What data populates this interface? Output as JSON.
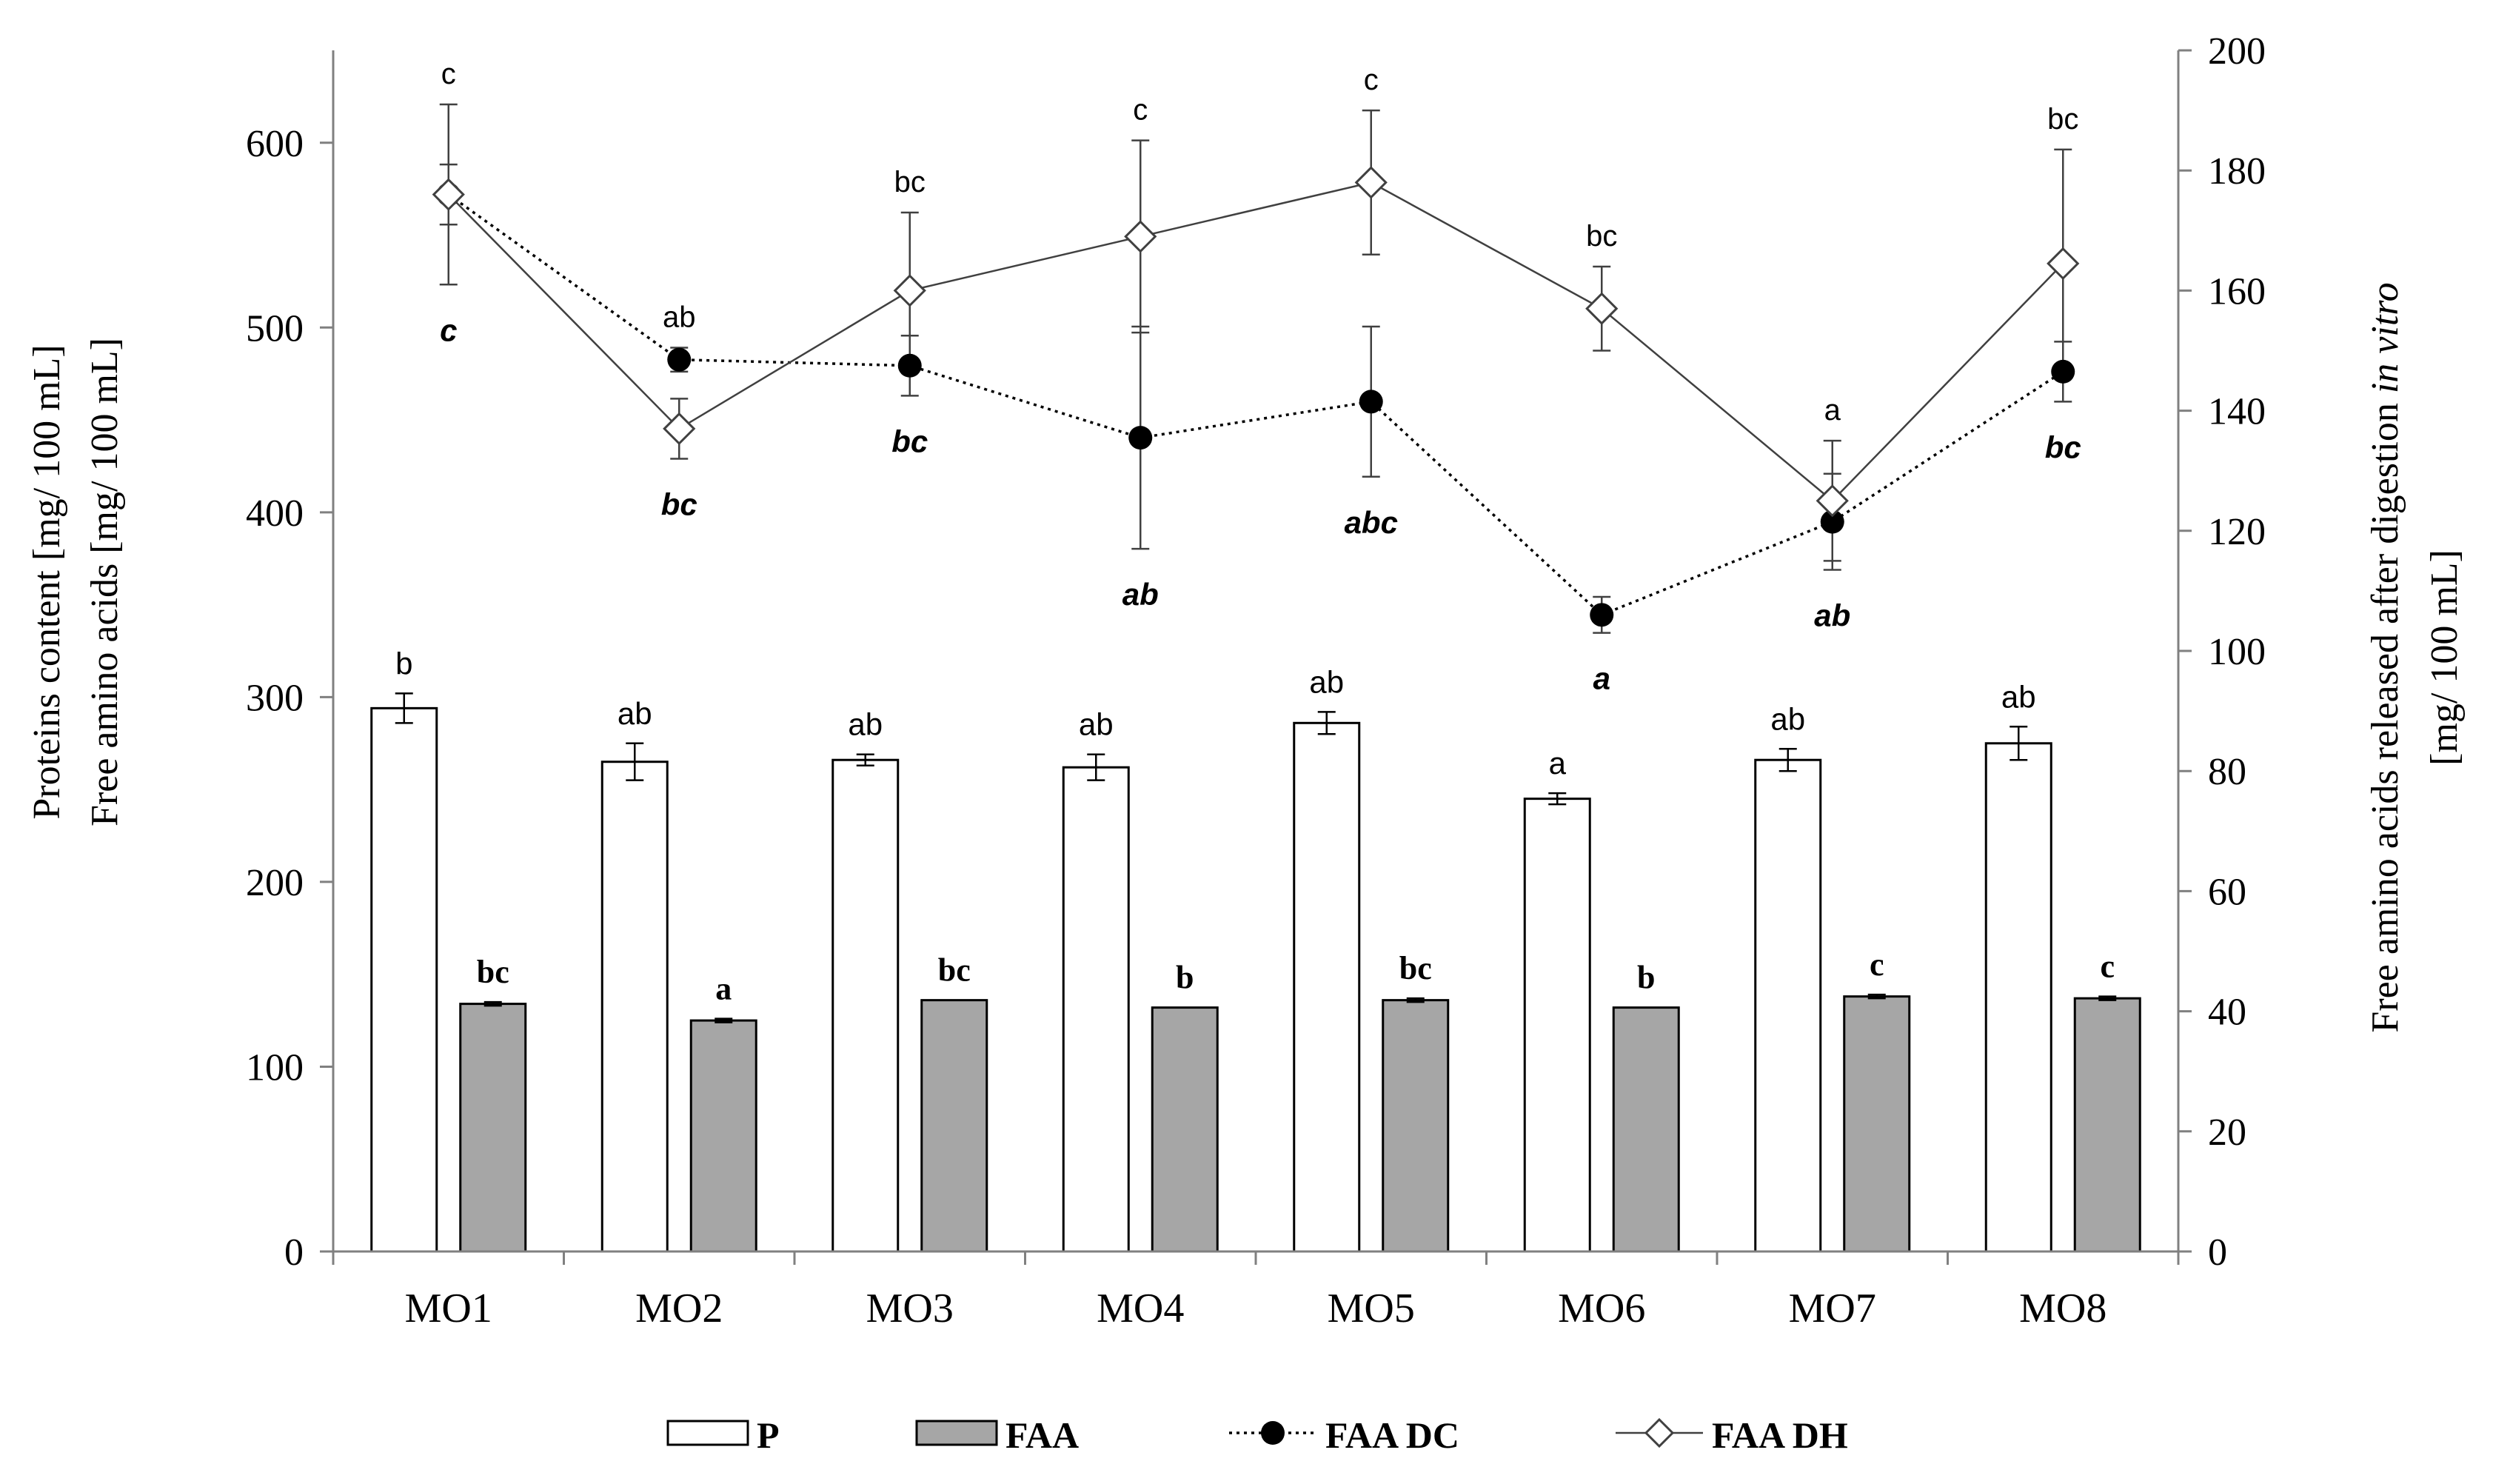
{
  "chart_data": {
    "type": "bar+line",
    "categories": [
      "MO1",
      "MO2",
      "MO3",
      "MO4",
      "MO5",
      "MO6",
      "MO7",
      "MO8"
    ],
    "left_axis": {
      "label_line1": "Proteins content [mg/ 100 mL]",
      "label_line2": "Free amino acids [mg/ 100 mL]",
      "ylim": [
        0,
        650
      ],
      "ticks": [
        "0",
        "100",
        "200",
        "300",
        "400",
        "500",
        "600"
      ]
    },
    "right_axis": {
      "label_line1_prefix": "Free amino acids released after digestion ",
      "label_line1_italic": "in vitro",
      "label_line2": "[mg/ 100 mL]",
      "ylim": [
        0,
        200
      ],
      "ticks": [
        "0",
        "20",
        "40",
        "60",
        "80",
        "100",
        "120",
        "140",
        "160",
        "180",
        "200"
      ]
    },
    "series": [
      {
        "name": "P",
        "kind": "bar",
        "axis": "left",
        "color": "#ffffff",
        "values": [
          294,
          265,
          266,
          262,
          286,
          245,
          266,
          275
        ],
        "errors": [
          8,
          10,
          3,
          7,
          6,
          3,
          6,
          9
        ],
        "letters": [
          "b",
          "ab",
          "ab",
          "ab",
          "ab",
          "a",
          "ab",
          "ab"
        ]
      },
      {
        "name": "FAA",
        "kind": "bar",
        "axis": "left",
        "color": "#a6a6a6",
        "values": [
          134,
          125,
          136,
          132,
          136,
          132,
          138,
          137
        ],
        "errors": [
          1,
          1,
          0,
          0,
          1,
          0,
          1,
          1
        ],
        "letters": [
          "bc",
          "a",
          "bc",
          "b",
          "bc",
          "b",
          "c",
          "c"
        ]
      },
      {
        "name": "FAA DC",
        "kind": "line",
        "axis": "right",
        "style": "dotted-filled-circle",
        "values": [
          176,
          148.5,
          147.5,
          135.5,
          141.5,
          106,
          121.5,
          146.5
        ],
        "errors": [
          5,
          2,
          5,
          18.5,
          12.5,
          3,
          8,
          5
        ],
        "letters": [
          "c",
          "bc",
          "bc",
          "ab",
          "abc",
          "a",
          "ab",
          "bc"
        ]
      },
      {
        "name": "FAA DH",
        "kind": "line",
        "axis": "right",
        "style": "solid-open-diamond",
        "values": [
          176,
          137,
          160,
          169,
          178,
          157,
          125,
          164.5
        ],
        "errors": [
          15,
          5,
          13,
          16,
          12,
          7,
          10,
          19
        ],
        "letters": [
          "c",
          "ab",
          "bc",
          "c",
          "c",
          "bc",
          "a",
          "bc"
        ]
      }
    ],
    "legend": {
      "position": "bottom",
      "entries": [
        "P",
        "FAA",
        "FAA DC",
        "FAA DH"
      ]
    }
  }
}
